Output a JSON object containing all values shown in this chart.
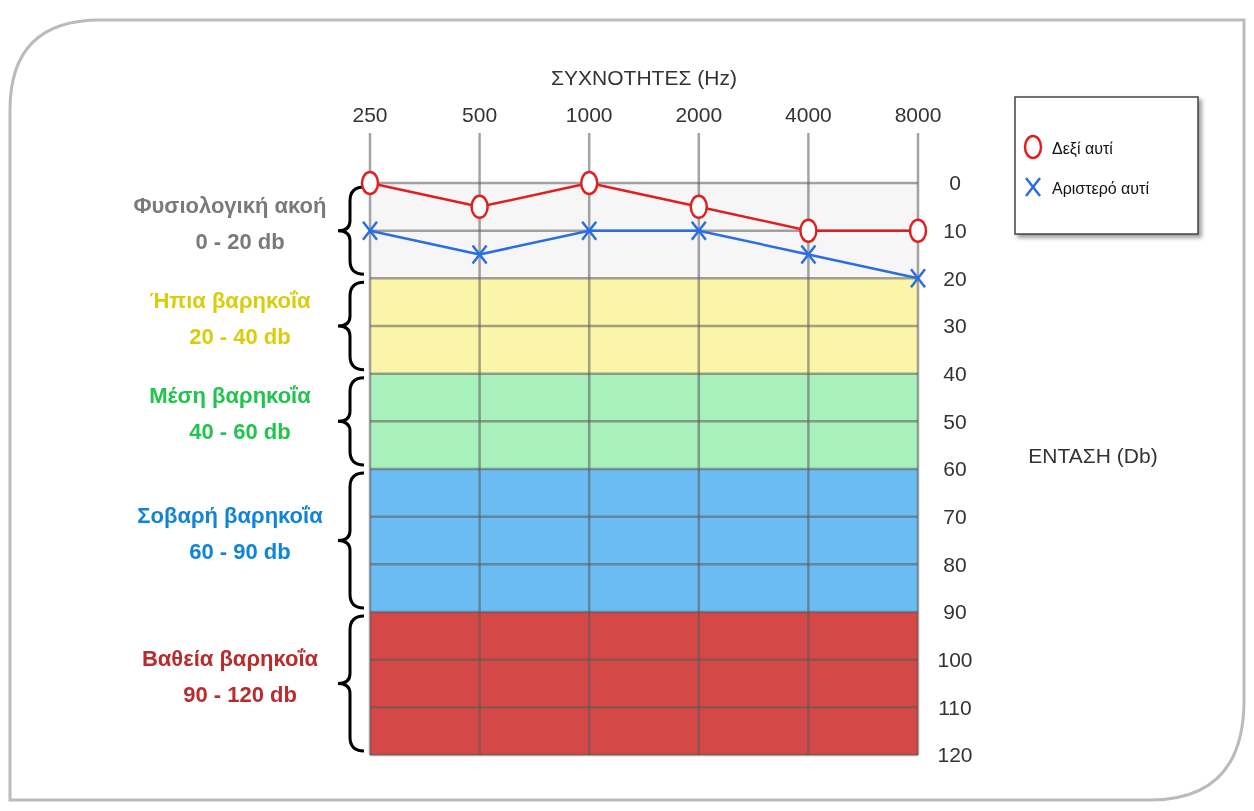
{
  "chart_data": {
    "type": "line",
    "xlabel": "ΣΥΧΝΟΤΗΤΕΣ (Hz)",
    "ylabel": "ΕΝΤΑΣΗ (Db)",
    "categories": [
      "250",
      "500",
      "1000",
      "2000",
      "4000",
      "8000"
    ],
    "series": [
      {
        "name": "Δεξί αυτί",
        "color": "#e02020",
        "marker": "circle",
        "values": [
          0,
          5,
          0,
          5,
          10,
          10
        ]
      },
      {
        "name": "Αριστερό αυτί",
        "color": "#2a6ee0",
        "marker": "cross",
        "values": [
          10,
          15,
          10,
          10,
          15,
          20
        ]
      }
    ],
    "ylim": [
      120,
      0
    ],
    "yticks": [
      0,
      10,
      20,
      30,
      40,
      50,
      60,
      70,
      80,
      90,
      100,
      110,
      120
    ],
    "grid": true,
    "legend": "top right",
    "bands": [
      {
        "axis": "y",
        "from": 0,
        "to": 20,
        "label": "Φυσιολογική ακοή\n0 - 20 db",
        "color": "#f6f6f6"
      },
      {
        "axis": "y",
        "from": 20,
        "to": 40,
        "label": "Ήπια βαρηκοΐα\n20 - 40 db",
        "color": "#faf5a8"
      },
      {
        "axis": "y",
        "from": 40,
        "to": 60,
        "label": "Μέση βαρηκοΐα\n40 - 60 db",
        "color": "#a8f0bc"
      },
      {
        "axis": "y",
        "from": 60,
        "to": 90,
        "label": "Σοβαρή βαρηκοΐα\n60 - 90 db",
        "color": "#6cbcf4"
      },
      {
        "axis": "y",
        "from": 90,
        "to": 120,
        "label": "Βαθεία βαρηκοΐα\n90 - 120 db",
        "color": "#d44848"
      }
    ]
  }
}
